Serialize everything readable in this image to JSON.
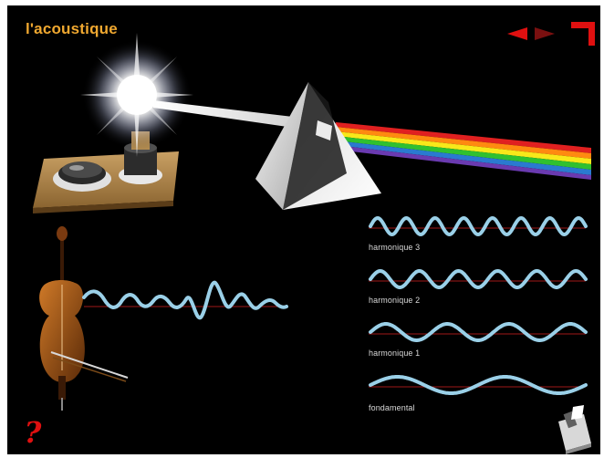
{
  "app": {
    "title": "l'acoustique"
  },
  "navigation": {
    "prev_icon": "red-left-arrow",
    "next_icon": "red-right-arrow",
    "exit_icon": "red-corner-arrow",
    "help_label": "?"
  },
  "waves": [
    {
      "label": "harmonique 3",
      "cycles": 7.5
    },
    {
      "label": "harmonique 2",
      "cycles": 5.5
    },
    {
      "label": "harmonique 1",
      "cycles": 3.5
    },
    {
      "label": "fondamental",
      "cycles": 2
    }
  ],
  "colors": {
    "background": "#000000",
    "title": "#f0a830",
    "accent_red": "#e01010",
    "wave": "#9ad0e8",
    "baseline": "#a01818"
  }
}
